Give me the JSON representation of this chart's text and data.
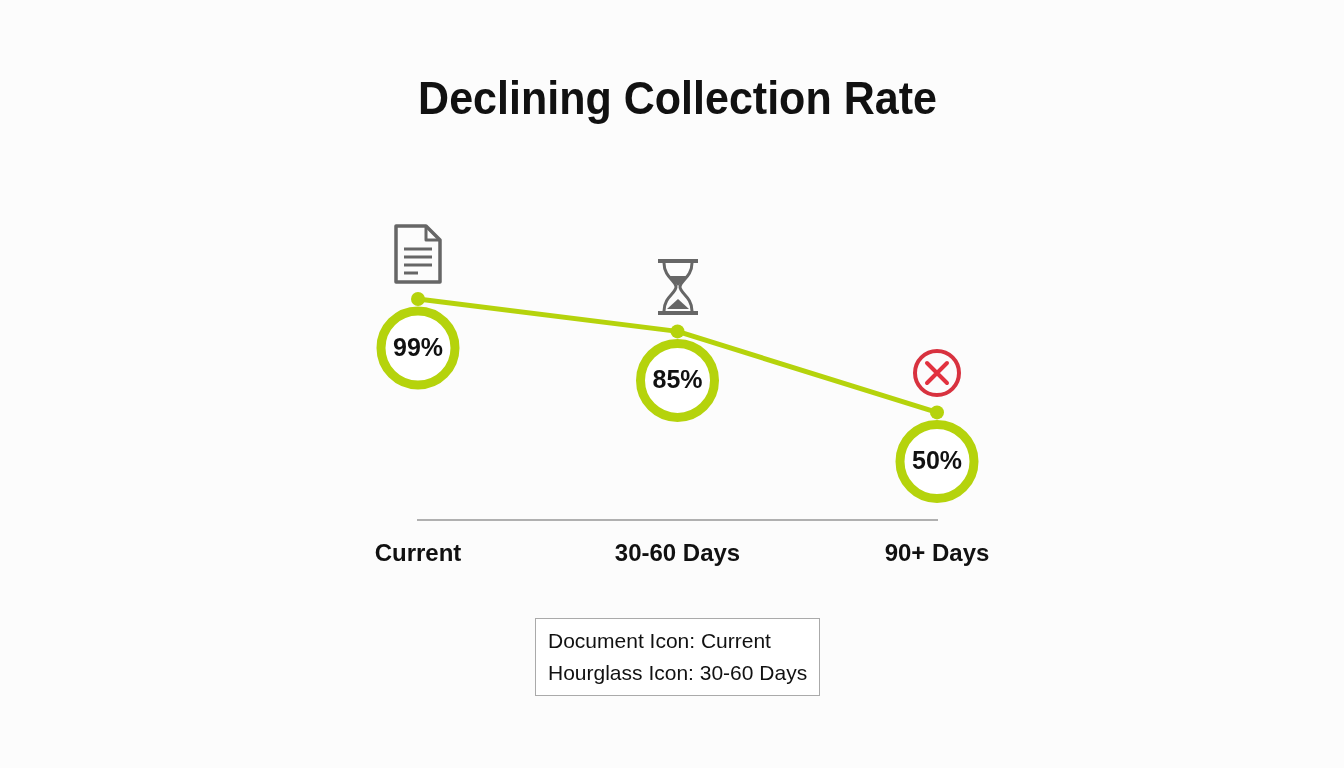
{
  "chart_data": {
    "type": "line",
    "title": "Declining Collection Rate",
    "categories": [
      "Current",
      "30-60 Days",
      "90+ Days"
    ],
    "values": [
      99,
      85,
      50
    ],
    "value_labels": [
      "99%",
      "85%",
      "50%"
    ],
    "color": "#b5d30c",
    "marker": "circle",
    "tick_labels": "x",
    "legend": false,
    "annotations": [
      "Document Icon: Current",
      "Hourglass Icon: 30-60 Days"
    ]
  }
}
